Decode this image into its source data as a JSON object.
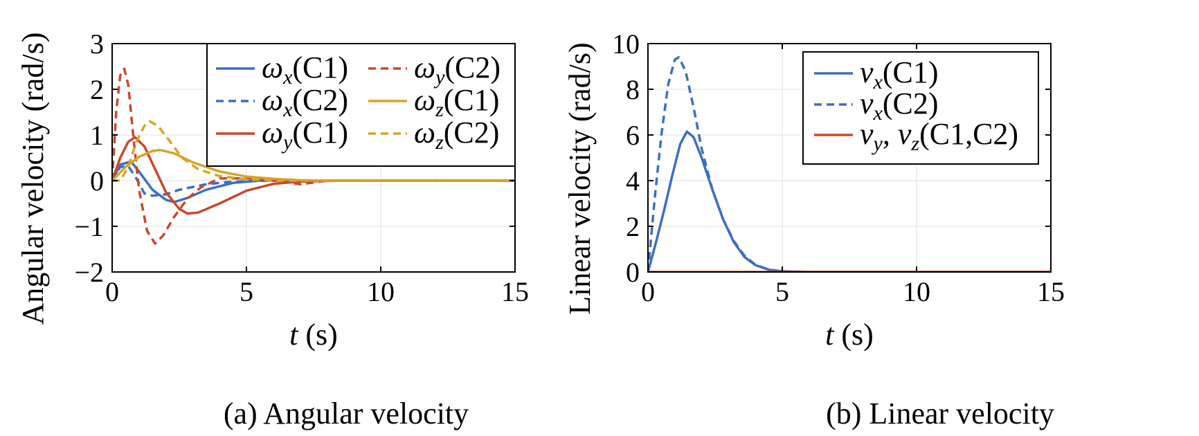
{
  "colors": {
    "blue": "#3c6fbf",
    "red": "#c9482a",
    "yellow": "#d9a324"
  },
  "chart_data": [
    {
      "id": "a",
      "type": "line",
      "caption": "(a) Angular velocity",
      "xlabel_var": "t",
      "xlabel_unit": " (s)",
      "ylabel": "Angular velocity (rad/s)",
      "xlim": [
        0,
        15
      ],
      "ylim": [
        -2,
        3
      ],
      "xticks": [
        0,
        5,
        10,
        15
      ],
      "yticks": [
        -2,
        -1,
        0,
        1,
        2,
        3
      ],
      "yticklabels": [
        "−2",
        "−1",
        "0",
        "1",
        "2",
        "3"
      ],
      "grid": true,
      "legend_position": "top-right",
      "legend_columns": 2,
      "series": [
        {
          "name": "ωx(C1)",
          "sym": "ω",
          "sub": "x",
          "tail": "(C1)",
          "color": "blue",
          "dash": "solid",
          "x": [
            0,
            0.3,
            0.7,
            1.0,
            1.5,
            2.0,
            2.3,
            2.8,
            3.5,
            4.5,
            5.5,
            7,
            15
          ],
          "y": [
            0,
            0.35,
            0.42,
            0.2,
            -0.2,
            -0.42,
            -0.47,
            -0.38,
            -0.2,
            -0.05,
            0,
            0,
            0
          ]
        },
        {
          "name": "ωx(C2)",
          "sym": "ω",
          "sub": "x",
          "tail": "(C2)",
          "color": "blue",
          "dash": "dash",
          "x": [
            0,
            0.3,
            0.6,
            0.9,
            1.2,
            1.5,
            2.0,
            2.5,
            3.5,
            4.5,
            6,
            15
          ],
          "y": [
            0,
            0.3,
            0.32,
            0.05,
            -0.28,
            -0.33,
            -0.3,
            -0.2,
            -0.08,
            -0.02,
            0,
            0
          ]
        },
        {
          "name": "ωy(C1)",
          "sym": "ω",
          "sub": "y",
          "tail": "(C1)",
          "color": "red",
          "dash": "solid",
          "x": [
            0,
            0.3,
            0.6,
            0.85,
            1.2,
            1.6,
            2.0,
            2.5,
            2.8,
            3.2,
            4.0,
            5.0,
            6.0,
            7.0,
            8.5,
            15
          ],
          "y": [
            0,
            0.5,
            0.85,
            0.95,
            0.75,
            0.25,
            -0.25,
            -0.62,
            -0.72,
            -0.7,
            -0.5,
            -0.22,
            -0.07,
            -0.02,
            0,
            0
          ]
        },
        {
          "name": "ωy(C2)",
          "sym": "ω",
          "sub": "y",
          "tail": "(C2)",
          "color": "red",
          "dash": "dash",
          "x": [
            0,
            0.15,
            0.3,
            0.45,
            0.6,
            0.8,
            1.0,
            1.3,
            1.6,
            1.9,
            2.3,
            2.8,
            3.3,
            4.0,
            5.0,
            6.0,
            7.0,
            8.0,
            15
          ],
          "y": [
            0,
            1.5,
            2.3,
            2.45,
            2.1,
            0.9,
            -0.2,
            -1.1,
            -1.38,
            -1.2,
            -0.8,
            -0.4,
            -0.15,
            0.05,
            0.05,
            0.02,
            -0.08,
            0,
            0
          ]
        },
        {
          "name": "ωz(C1)",
          "sym": "ω",
          "sub": "z",
          "tail": "(C1)",
          "color": "yellow",
          "dash": "solid",
          "x": [
            0,
            0.5,
            1.0,
            1.5,
            1.8,
            2.3,
            3.0,
            4.0,
            5.0,
            6.0,
            7.0,
            8.0,
            15
          ],
          "y": [
            0,
            0.3,
            0.52,
            0.65,
            0.67,
            0.6,
            0.4,
            0.2,
            0.09,
            0.04,
            0.01,
            0,
            0
          ]
        },
        {
          "name": "ωz(C2)",
          "sym": "ω",
          "sub": "z",
          "tail": "(C2)",
          "color": "yellow",
          "dash": "dash",
          "x": [
            0,
            0.3,
            0.6,
            0.9,
            1.2,
            1.4,
            1.7,
            2.1,
            2.6,
            3.2,
            4.0,
            5.0,
            6.0,
            15
          ],
          "y": [
            0,
            0.0,
            0.3,
            0.85,
            1.2,
            1.3,
            1.2,
            0.9,
            0.5,
            0.25,
            0.1,
            0.03,
            0,
            0
          ]
        }
      ]
    },
    {
      "id": "b",
      "type": "line",
      "caption": "(b) Linear velocity",
      "xlabel_var": "t",
      "xlabel_unit": " (s)",
      "ylabel": "Linear velocity (rad/s)",
      "xlim": [
        0,
        15
      ],
      "ylim": [
        0,
        10
      ],
      "xticks": [
        0,
        5,
        10,
        15
      ],
      "yticks": [
        0,
        2,
        4,
        6,
        8,
        10
      ],
      "yticklabels": [
        "0",
        "2",
        "4",
        "6",
        "8",
        "10"
      ],
      "grid": true,
      "legend_position": "top-right",
      "legend_columns": 1,
      "series": [
        {
          "name": "vx(C1)",
          "sym": "v",
          "sub": "x",
          "tail": "(C1)",
          "color": "blue",
          "dash": "solid",
          "x": [
            0,
            0.3,
            0.6,
            0.9,
            1.2,
            1.45,
            1.7,
            2.0,
            2.4,
            2.8,
            3.2,
            3.6,
            4.0,
            4.5,
            5.0,
            6.0,
            15
          ],
          "y": [
            0,
            1.3,
            2.7,
            4.2,
            5.6,
            6.15,
            5.9,
            5.0,
            3.6,
            2.3,
            1.3,
            0.65,
            0.3,
            0.1,
            0.03,
            0,
            0
          ]
        },
        {
          "name": "vx(C2)",
          "sym": "v",
          "sub": "x",
          "tail": "(C2)",
          "color": "blue",
          "dash": "dash",
          "x": [
            0,
            0.25,
            0.5,
            0.75,
            1.0,
            1.15,
            1.4,
            1.7,
            2.0,
            2.4,
            2.8,
            3.2,
            3.6,
            4.0,
            4.5,
            5.0,
            6.0,
            15
          ],
          "y": [
            0,
            3.2,
            6.0,
            8.2,
            9.3,
            9.4,
            8.8,
            7.2,
            5.4,
            3.6,
            2.3,
            1.35,
            0.7,
            0.32,
            0.1,
            0.03,
            0,
            0
          ]
        },
        {
          "name": "vy, vz(C1,C2)",
          "sym": "v",
          "sub": "y",
          "mid": ", ",
          "sym2": "v",
          "sub2": "z",
          "tail": "(C1,C2)",
          "color": "red",
          "dash": "solid",
          "x": [
            0,
            15
          ],
          "y": [
            0,
            0
          ]
        }
      ]
    }
  ]
}
